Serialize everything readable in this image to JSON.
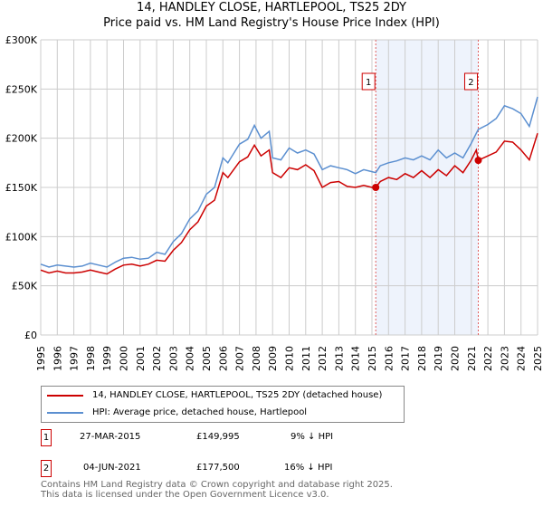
{
  "title": "14, HANDLEY CLOSE, HARTLEPOOL, TS25 2DY",
  "subtitle": "Price paid vs. HM Land Registry's House Price Index (HPI)",
  "chart_data": {
    "type": "line",
    "ylim": [
      0,
      300000
    ],
    "xlim": [
      1995,
      2025
    ],
    "yticks": [
      {
        "v": 0,
        "label": "£0"
      },
      {
        "v": 50000,
        "label": "£50K"
      },
      {
        "v": 100000,
        "label": "£100K"
      },
      {
        "v": 150000,
        "label": "£150K"
      },
      {
        "v": 200000,
        "label": "£200K"
      },
      {
        "v": 250000,
        "label": "£250K"
      },
      {
        "v": 300000,
        "label": "£300K"
      }
    ],
    "xticks": [
      "1995",
      "1996",
      "1997",
      "1998",
      "1999",
      "2000",
      "2001",
      "2002",
      "2003",
      "2004",
      "2005",
      "2006",
      "2007",
      "2008",
      "2009",
      "2010",
      "2011",
      "2012",
      "2013",
      "2014",
      "2015",
      "2016",
      "2017",
      "2018",
      "2019",
      "2020",
      "2021",
      "2022",
      "2023",
      "2024",
      "2025"
    ],
    "shaded_range": [
      2015.23,
      2021.42
    ],
    "series": [
      {
        "name": "14, HANDLEY CLOSE, HARTLEPOOL, TS25 2DY (detached house)",
        "color": "#cc0000",
        "x": [
          1995,
          1995.5,
          1996,
          1996.5,
          1997,
          1997.5,
          1998,
          1998.5,
          1999,
          1999.5,
          2000,
          2000.5,
          2001,
          2001.5,
          2002,
          2002.5,
          2003,
          2003.5,
          2004,
          2004.5,
          2005,
          2005.5,
          2006,
          2006.3,
          2007,
          2007.5,
          2007.9,
          2008.3,
          2008.8,
          2009,
          2009.5,
          2010,
          2010.5,
          2011,
          2011.5,
          2012,
          2012.5,
          2013,
          2013.5,
          2014,
          2014.5,
          2015,
          2015.23,
          2015.5,
          2016,
          2016.5,
          2017,
          2017.5,
          2018,
          2018.5,
          2019,
          2019.5,
          2020,
          2020.5,
          2021,
          2021.3,
          2021.42,
          2022,
          2022.5,
          2023,
          2023.5,
          2024,
          2024.5,
          2025
        ],
        "y": [
          66000,
          63000,
          65000,
          63000,
          63000,
          64000,
          66000,
          64000,
          62000,
          67000,
          71000,
          72000,
          70000,
          72000,
          76000,
          75000,
          86000,
          94000,
          107000,
          115000,
          131000,
          137000,
          165000,
          160000,
          176000,
          181000,
          193000,
          182000,
          188000,
          165000,
          160000,
          170000,
          168000,
          173000,
          167000,
          150000,
          155000,
          156000,
          151000,
          150000,
          152000,
          150000,
          149995,
          156000,
          160000,
          158000,
          164000,
          160000,
          167000,
          160000,
          168000,
          162000,
          172000,
          165000,
          178000,
          188000,
          177500,
          182000,
          186000,
          197000,
          196000,
          188000,
          178000,
          205000
        ]
      },
      {
        "name": "HPI: Average price, detached house, Hartlepool",
        "color": "#5b8fd0",
        "x": [
          1995,
          1995.5,
          1996,
          1996.5,
          1997,
          1997.5,
          1998,
          1998.5,
          1999,
          1999.5,
          2000,
          2000.5,
          2001,
          2001.5,
          2002,
          2002.5,
          2003,
          2003.5,
          2004,
          2004.5,
          2005,
          2005.5,
          2006,
          2006.3,
          2007,
          2007.5,
          2007.9,
          2008.3,
          2008.8,
          2009,
          2009.5,
          2010,
          2010.5,
          2011,
          2011.5,
          2012,
          2012.5,
          2013,
          2013.5,
          2014,
          2014.5,
          2015,
          2015.23,
          2015.5,
          2016,
          2016.5,
          2017,
          2017.5,
          2018,
          2018.5,
          2019,
          2019.5,
          2020,
          2020.5,
          2021,
          2021.3,
          2021.42,
          2022,
          2022.5,
          2023,
          2023.5,
          2024,
          2024.5,
          2025
        ],
        "y": [
          72000,
          69000,
          71000,
          70000,
          69000,
          70000,
          73000,
          71000,
          69000,
          74000,
          78000,
          79000,
          77000,
          78000,
          84000,
          82000,
          95000,
          103000,
          118000,
          126000,
          143000,
          150000,
          180000,
          175000,
          194000,
          199000,
          213000,
          200000,
          207000,
          180000,
          178000,
          190000,
          185000,
          188000,
          184000,
          168000,
          172000,
          170000,
          168000,
          164000,
          168000,
          166000,
          165000,
          172000,
          175000,
          177000,
          180000,
          178000,
          182000,
          178000,
          188000,
          180000,
          185000,
          180000,
          195000,
          205000,
          209000,
          214000,
          220000,
          233000,
          230000,
          225000,
          212000,
          242000
        ]
      }
    ],
    "markers": [
      {
        "label": "1",
        "x": 2015.23,
        "y": 149995
      },
      {
        "label": "2",
        "x": 2021.42,
        "y": 177500
      }
    ]
  },
  "legend": {
    "red": "14, HANDLEY CLOSE, HARTLEPOOL, TS25 2DY (detached house)",
    "blue": "HPI: Average price, detached house, Hartlepool"
  },
  "transactions": [
    {
      "num": "1",
      "date": "27-MAR-2015",
      "price": "£149,995",
      "hpi": "9% ↓ HPI"
    },
    {
      "num": "2",
      "date": "04-JUN-2021",
      "price": "£177,500",
      "hpi": "16% ↓ HPI"
    }
  ],
  "footer": {
    "line1": "Contains HM Land Registry data © Crown copyright and database right 2025.",
    "line2": "This data is licensed under the Open Government Licence v3.0."
  }
}
